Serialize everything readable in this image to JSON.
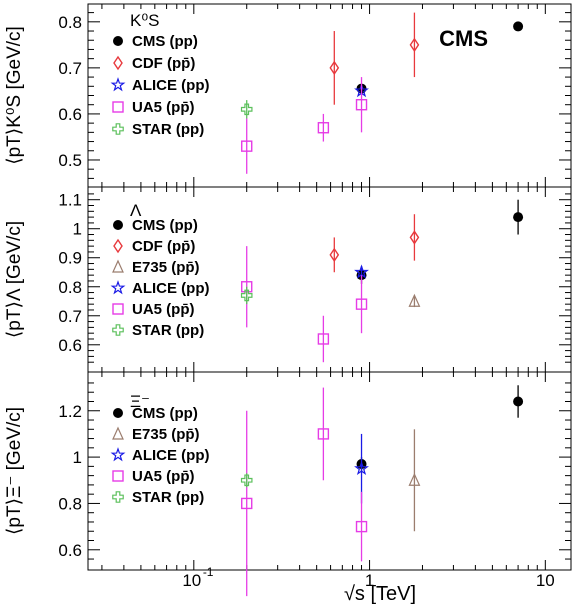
{
  "figure": {
    "corner_label": "CMS",
    "xlabel": "√s  [TeV]",
    "xscale": "log",
    "xlim": [
      0.025,
      14
    ],
    "x_ticks": [
      {
        "value": 0.1,
        "base": "10",
        "exp": "-1"
      },
      {
        "value": 1,
        "base": "1",
        "exp": ""
      },
      {
        "value": 10,
        "base": "10",
        "exp": ""
      }
    ],
    "marker_colors": {
      "CMS": "#000000",
      "CDF": "#e8393d",
      "E735": "#9b7d6e",
      "ALICE": "#1a1ae6",
      "UA5": "#e63ce6",
      "STAR": "#5cc05c"
    }
  },
  "chart_data": [
    {
      "type": "scatter",
      "panel_label": "K⁰S",
      "ylabel": "⟨pT⟩K⁰S  [GeV/c]",
      "ylim": [
        0.45,
        0.83
      ],
      "y_ticks": [
        0.5,
        0.6,
        0.7,
        0.8
      ],
      "series": [
        {
          "name": "CMS (pp)",
          "marker": "circle",
          "color": "#000000",
          "points": [
            {
              "x": 0.9,
              "y": 0.655,
              "err": 0.01
            },
            {
              "x": 7,
              "y": 0.79,
              "err": 0.01
            }
          ]
        },
        {
          "name": "CDF (pp̄)",
          "marker": "diamond",
          "color": "#e8393d",
          "points": [
            {
              "x": 0.63,
              "y": 0.7,
              "err": 0.08
            },
            {
              "x": 1.8,
              "y": 0.75,
              "err": 0.07
            }
          ]
        },
        {
          "name": "ALICE (pp)",
          "marker": "star",
          "color": "#1a1ae6",
          "points": [
            {
              "x": 0.9,
              "y": 0.65,
              "err": 0.01
            }
          ]
        },
        {
          "name": "UA5 (pp̄)",
          "marker": "square",
          "color": "#e63ce6",
          "points": [
            {
              "x": 0.2,
              "y": 0.53,
              "err": 0.06
            },
            {
              "x": 0.546,
              "y": 0.57,
              "err": 0.03
            },
            {
              "x": 0.9,
              "y": 0.62,
              "err": 0.06
            }
          ]
        },
        {
          "name": "STAR (pp)",
          "marker": "cross",
          "color": "#5cc05c",
          "points": [
            {
              "x": 0.2,
              "y": 0.61,
              "err": 0.02
            }
          ]
        }
      ]
    },
    {
      "type": "scatter",
      "panel_label": "Λ",
      "ylabel": "⟨pT⟩Λ  [GeV/c]",
      "ylim": [
        0.52,
        1.13
      ],
      "y_ticks": [
        0.6,
        0.7,
        0.8,
        0.9,
        1.0,
        1.1
      ],
      "series": [
        {
          "name": "CMS (pp)",
          "marker": "circle",
          "color": "#000000",
          "points": [
            {
              "x": 0.9,
              "y": 0.84,
              "err": 0.03
            },
            {
              "x": 7,
              "y": 1.04,
              "err": 0.06
            }
          ]
        },
        {
          "name": "CDF (pp̄)",
          "marker": "diamond",
          "color": "#e8393d",
          "points": [
            {
              "x": 0.63,
              "y": 0.91,
              "err": 0.06
            },
            {
              "x": 1.8,
              "y": 0.97,
              "err": 0.08
            }
          ]
        },
        {
          "name": "E735 (pp̄)",
          "marker": "triangle",
          "color": "#9b7d6e",
          "points": [
            {
              "x": 1.8,
              "y": 0.75,
              "err": 0.02
            }
          ]
        },
        {
          "name": "ALICE (pp)",
          "marker": "star",
          "color": "#1a1ae6",
          "points": [
            {
              "x": 0.9,
              "y": 0.85,
              "err": 0.02
            }
          ]
        },
        {
          "name": "UA5 (pp̄)",
          "marker": "square",
          "color": "#e63ce6",
          "points": [
            {
              "x": 0.2,
              "y": 0.8,
              "err": 0.14
            },
            {
              "x": 0.546,
              "y": 0.62,
              "err": 0.08
            },
            {
              "x": 0.9,
              "y": 0.74,
              "err": 0.1
            }
          ]
        },
        {
          "name": "STAR (pp)",
          "marker": "cross",
          "color": "#5cc05c",
          "points": [
            {
              "x": 0.2,
              "y": 0.77,
              "err": 0.03
            }
          ]
        }
      ]
    },
    {
      "type": "scatter",
      "panel_label": "Ξ⁻",
      "ylabel": "⟨pT⟩Ξ⁻  [GeV/c]",
      "ylim": [
        0.53,
        1.35
      ],
      "y_ticks": [
        0.6,
        0.8,
        1.0,
        1.2
      ],
      "series": [
        {
          "name": "CMS (pp)",
          "marker": "circle",
          "color": "#000000",
          "points": [
            {
              "x": 0.9,
              "y": 0.97,
              "err": 0.03
            },
            {
              "x": 7,
              "y": 1.24,
              "err": 0.07
            }
          ]
        },
        {
          "name": "E735 (pp̄)",
          "marker": "triangle",
          "color": "#9b7d6e",
          "points": [
            {
              "x": 1.8,
              "y": 0.9,
              "err": 0.22
            }
          ]
        },
        {
          "name": "ALICE (pp)",
          "marker": "star",
          "color": "#1a1ae6",
          "points": [
            {
              "x": 0.9,
              "y": 0.95,
              "err": 0.15
            }
          ]
        },
        {
          "name": "UA5 (pp̄)",
          "marker": "square",
          "color": "#e63ce6",
          "points": [
            {
              "x": 0.2,
              "y": 0.8,
              "err": 0.4
            },
            {
              "x": 0.546,
              "y": 1.1,
              "err": 0.2
            },
            {
              "x": 0.9,
              "y": 0.7,
              "err": 0.15
            }
          ]
        },
        {
          "name": "STAR (pp)",
          "marker": "cross",
          "color": "#5cc05c",
          "points": [
            {
              "x": 0.2,
              "y": 0.9,
              "err": 0.03
            }
          ]
        }
      ]
    }
  ]
}
